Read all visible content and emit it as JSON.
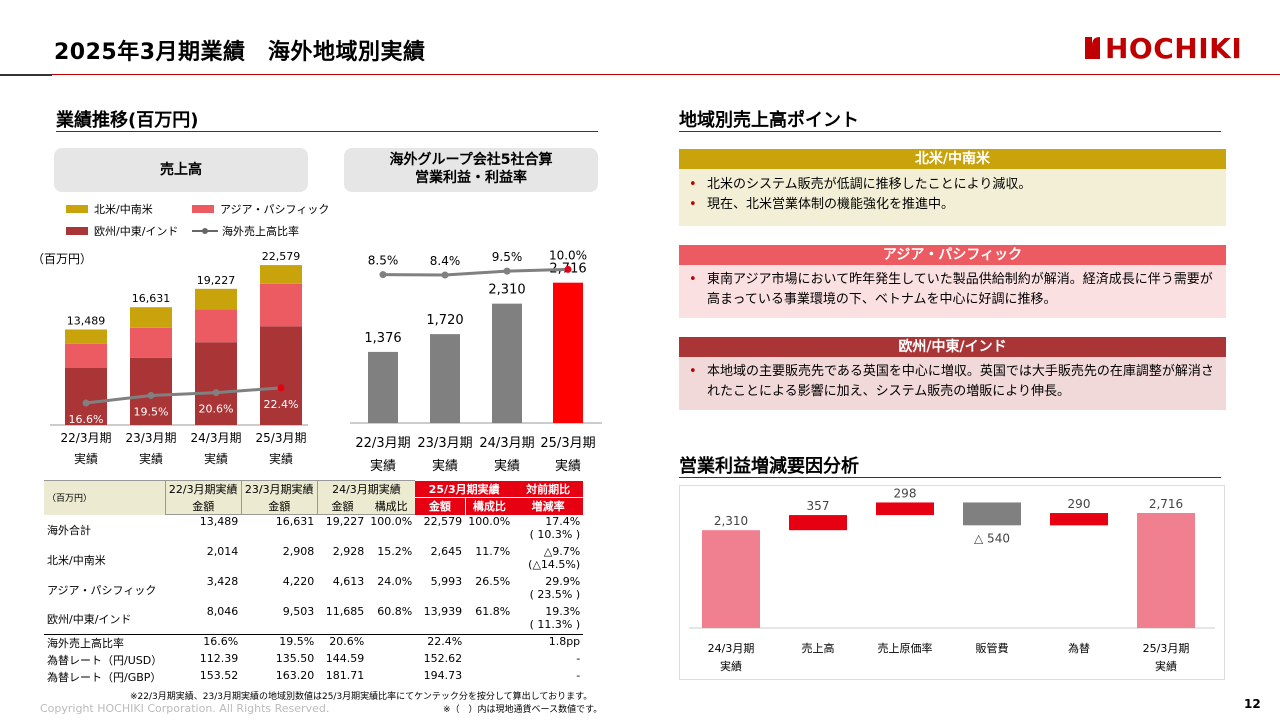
{
  "page": {
    "title": "2025年3月期業績　海外地域別実績",
    "page_number": "12",
    "copyright": "Copyright HOCHIKI Corporation. All Rights Reserved.",
    "logo_text": "HOCHIKI",
    "footnote1": "※22/3月期実績、23/3月期実績の地域別数値は25/3月期実績比率にてケンテック分を按分して算出しております。",
    "footnote2": "※（　）内は現地通貨ベース数値です。"
  },
  "left": {
    "section_title": "業績推移(百万円)",
    "sales_header": "売上高",
    "op_header_line1": "海外グループ会社5社合算",
    "op_header_line2": "営業利益・利益率",
    "unit_label": "（百万円）",
    "legend": {
      "na": "北米/中南米",
      "asia": "アジア・パシフィック",
      "eu": "欧州/中東/インド",
      "ratio": "海外売上高比率"
    }
  },
  "right": {
    "section_title": "地域別売上高ポイント",
    "regions": [
      {
        "name": "北米/中南米",
        "color": "#c9a30b",
        "bg": "#f3efd6",
        "points": [
          "北米のシステム販売が低調に推移したことにより減収。",
          "現在、北米営業体制の機能強化を推進中。"
        ]
      },
      {
        "name": "アジア・パシフィック",
        "color": "#ec5a62",
        "bg": "#fbe0e2",
        "points": [
          "東南アジア市場において昨年発生していた製品供給制約が解消。経済成長に伴う需要が高まっている事業環境の下、ベトナムを中心に好調に推移。"
        ]
      },
      {
        "name": "欧州/中東/インド",
        "color": "#a93537",
        "bg": "#f1d8d9",
        "points": [
          "本地域の主要販売先である英国を中心に増収。英国では大手販売先の在庫調整が解消されたことによる影響に加え、システム販売の増販により伸長。"
        ]
      }
    ],
    "waterfall_title": "営業利益増減要因分析"
  },
  "table": {
    "unit": "（百万円）",
    "headers": [
      "22/3月期実績",
      "23/3月期実績",
      "24/3月期実績",
      "25/3月期実績",
      "対前期比"
    ],
    "subheaders": [
      "金額",
      "金額",
      "金額",
      "構成比",
      "金額",
      "構成比",
      "増減率"
    ],
    "rows": [
      {
        "label": "海外合計",
        "v": [
          "13,489",
          "16,631",
          "19,227",
          "100.0%",
          "22,579",
          "100.0%",
          "17.4%"
        ],
        "sub": "( 10.3% )"
      },
      {
        "label": "北米/中南米",
        "v": [
          "2,014",
          "2,908",
          "2,928",
          "15.2%",
          "2,645",
          "11.7%",
          "△9.7%"
        ],
        "sub": "(△14.5%)"
      },
      {
        "label": "アジア・パシフィック",
        "v": [
          "3,428",
          "4,220",
          "4,613",
          "24.0%",
          "5,993",
          "26.5%",
          "29.9%"
        ],
        "sub": "( 23.5% )"
      },
      {
        "label": "欧州/中東/インド",
        "v": [
          "8,046",
          "9,503",
          "11,685",
          "60.8%",
          "13,939",
          "61.8%",
          "19.3%"
        ],
        "sub": "( 11.3% )"
      },
      {
        "label": "海外売上高比率",
        "v": [
          "16.6%",
          "19.5%",
          "20.6%",
          "",
          "22.4%",
          "",
          "1.8pp"
        ],
        "sub": ""
      },
      {
        "label": "為替レート（円/USD）",
        "v": [
          "112.39",
          "135.50",
          "144.59",
          "",
          "152.62",
          "",
          "-"
        ],
        "sub": ""
      },
      {
        "label": "為替レート（円/GBP）",
        "v": [
          "153.52",
          "163.20",
          "181.71",
          "",
          "194.73",
          "",
          "-"
        ],
        "sub": ""
      }
    ]
  },
  "chart_data": [
    {
      "type": "bar",
      "title": "売上高",
      "stacked": true,
      "categories": [
        "22/3月期\n実績",
        "23/3月期\n実績",
        "24/3月期\n実績",
        "25/3月期\n実績"
      ],
      "category_labels": [
        [
          "22/3月期",
          "実績"
        ],
        [
          "23/3月期",
          "実績"
        ],
        [
          "24/3月期",
          "実績"
        ],
        [
          "25/3月期",
          "実績"
        ]
      ],
      "series": [
        {
          "name": "欧州/中東/インド",
          "color": "#a93537",
          "values": [
            8046,
            9503,
            11685,
            13939
          ]
        },
        {
          "name": "アジア・パシフィック",
          "color": "#ec5a62",
          "values": [
            3428,
            4220,
            4613,
            5993
          ]
        },
        {
          "name": "北米/中南米",
          "color": "#c9a30b",
          "values": [
            2014,
            2908,
            2928,
            2645
          ]
        }
      ],
      "totals": [
        13489,
        16631,
        19227,
        22579
      ],
      "total_labels": [
        "13,489",
        "16,631",
        "19,227",
        "22,579"
      ],
      "ratio_series": {
        "name": "海外売上高比率",
        "values": [
          16.6,
          19.5,
          20.6,
          22.4
        ],
        "labels": [
          "16.6%",
          "19.5%",
          "20.6%",
          "22.4%"
        ]
      },
      "ylim": [
        0,
        24000
      ]
    },
    {
      "type": "bar",
      "title": "海外グループ会社5社合算 営業利益・利益率",
      "categories": [
        "22/3月期\n実績",
        "23/3月期\n実績",
        "24/3月期\n実績",
        "25/3月期\n実績"
      ],
      "values": [
        1376,
        1720,
        2310,
        2716
      ],
      "value_labels": [
        "1,376",
        "1,720",
        "2,310",
        "2,716"
      ],
      "colors": [
        "#808080",
        "#808080",
        "#808080",
        "#ff0000"
      ],
      "ratio_series": {
        "values": [
          8.5,
          8.4,
          9.5,
          10.0
        ],
        "labels": [
          "8.5%",
          "8.4%",
          "9.5%",
          "10.0%"
        ]
      },
      "ylim": [
        0,
        3000
      ]
    },
    {
      "type": "waterfall",
      "title": "営業利益増減要因分析",
      "categories": [
        [
          "24/3月期",
          "実績"
        ],
        [
          "売上高"
        ],
        [
          "売上原価率"
        ],
        [
          "販管費"
        ],
        [
          "為替"
        ],
        [
          "25/3月期",
          "実績"
        ]
      ],
      "values": [
        2310,
        357,
        298,
        -540,
        290,
        2716
      ],
      "value_labels": [
        "2,310",
        "357",
        "298",
        "△ 540",
        "290",
        "2,716"
      ],
      "kinds": [
        "total",
        "delta",
        "delta",
        "delta",
        "delta",
        "total"
      ]
    }
  ]
}
